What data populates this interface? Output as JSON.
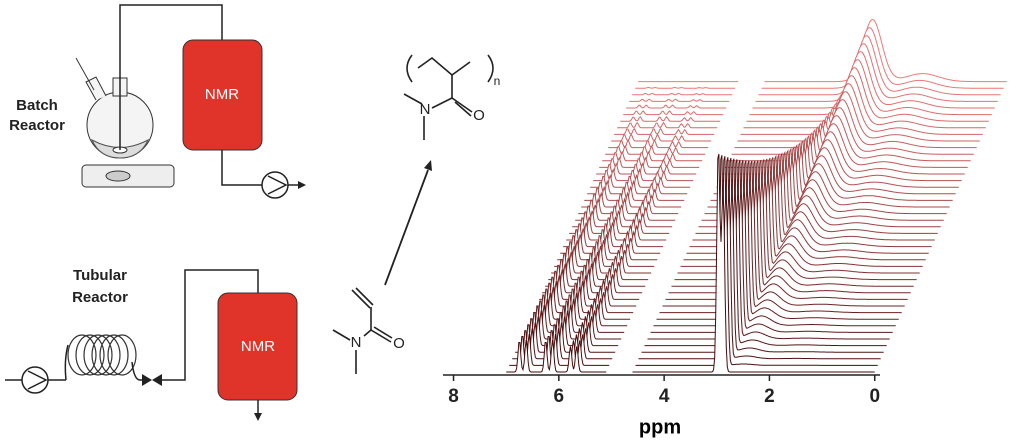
{
  "batch_reactor": {
    "label": [
      "Batch",
      "Reactor"
    ],
    "detector": "NMR"
  },
  "tubular_reactor": {
    "label": [
      "Tubular",
      "Reactor"
    ],
    "detector": "NMR"
  },
  "polymer": {
    "atoms": [
      "N",
      "O"
    ],
    "repeat": "n"
  },
  "monomer": {
    "atoms": [
      "N",
      "O"
    ]
  },
  "spectra": {
    "xlabel": "ppm",
    "xlim": [
      8.2,
      -0.1
    ],
    "xticks": [
      8,
      6,
      4,
      2,
      0
    ]
  }
}
